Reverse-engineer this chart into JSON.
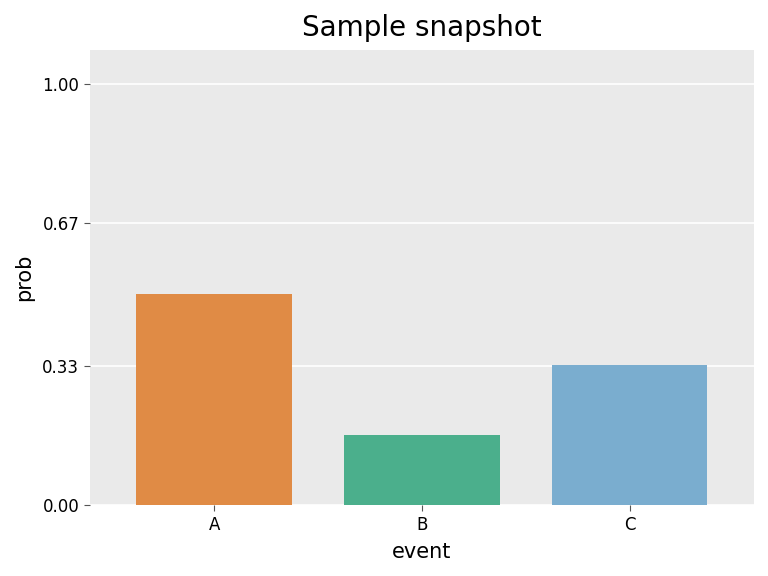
{
  "title": "Sample snapshot",
  "categories": [
    "A",
    "B",
    "C"
  ],
  "values": [
    0.5,
    0.1667,
    0.3333
  ],
  "bar_colors": [
    "#E08B45",
    "#4BAF8C",
    "#7AADCF"
  ],
  "xlabel": "event",
  "ylabel": "prob",
  "ylim": [
    0.0,
    1.0
  ],
  "yticks": [
    0.0,
    0.33,
    0.67,
    1.0
  ],
  "ytick_labels": [
    "0.00",
    "0.33",
    "0.67",
    "1.00"
  ],
  "plot_bg_color": "#EAEAEA",
  "fig_bg_color": "#FFFFFF",
  "grid_color": "#FFFFFF",
  "title_fontsize": 20,
  "label_fontsize": 15,
  "tick_fontsize": 12
}
